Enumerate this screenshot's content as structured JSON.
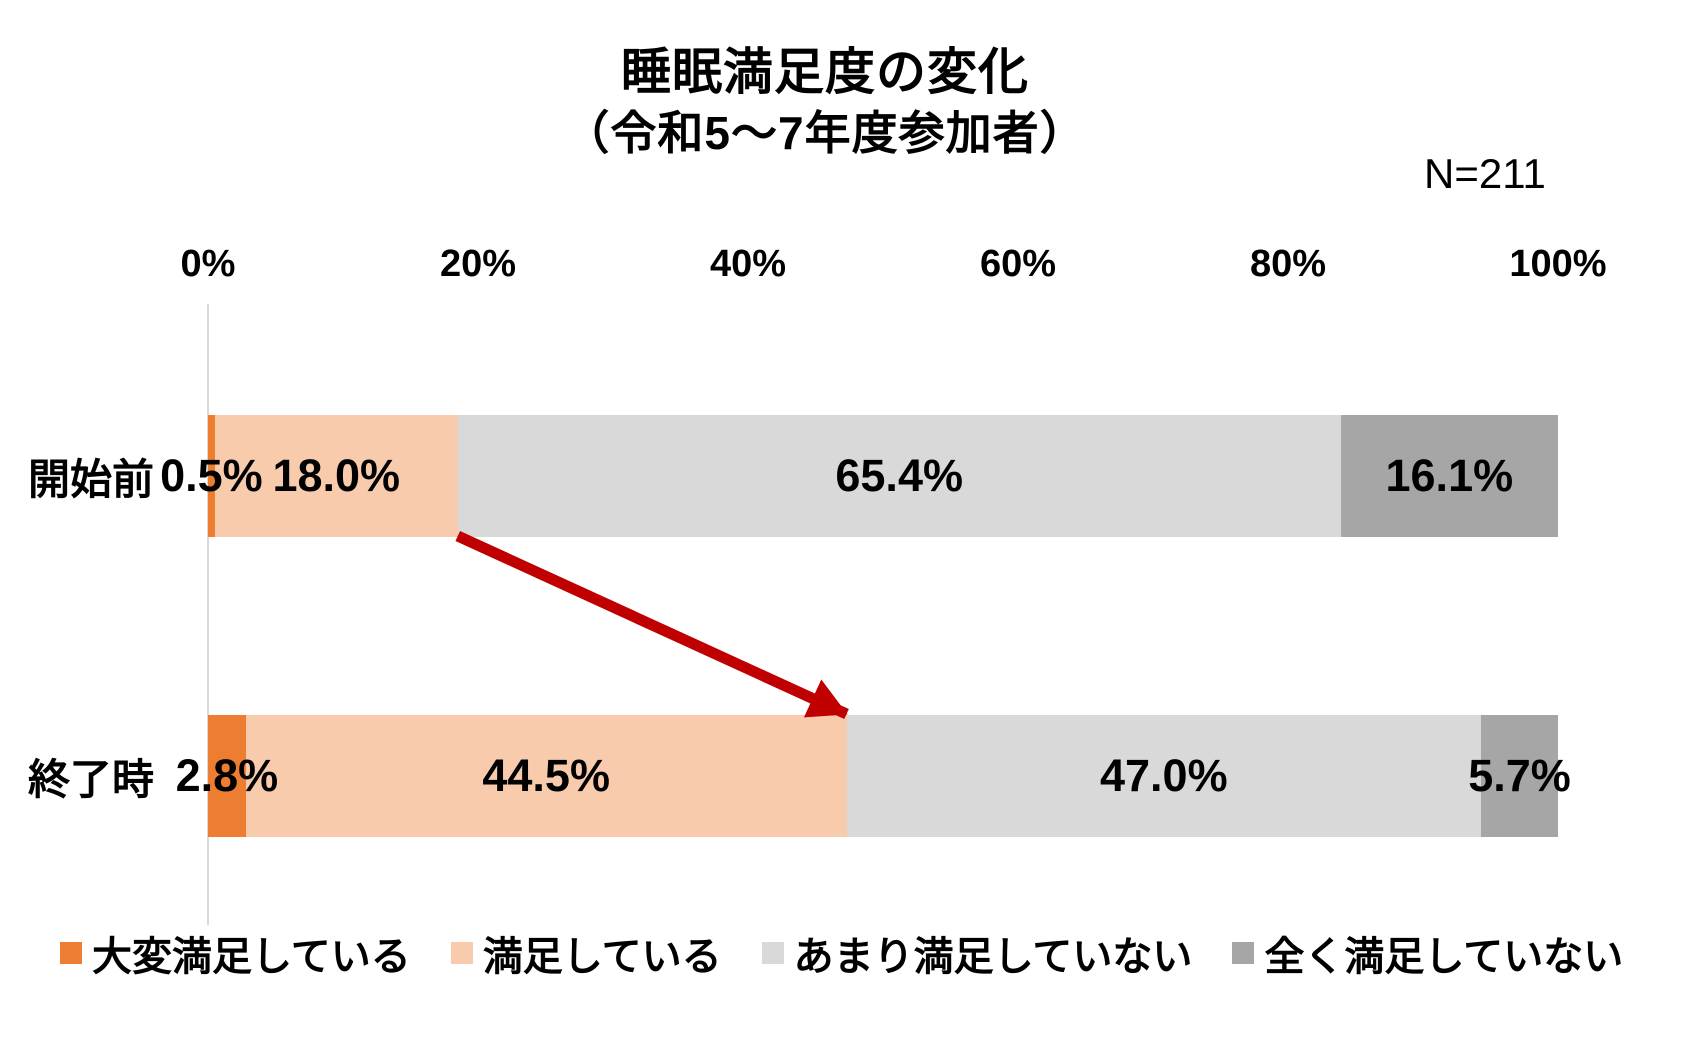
{
  "title": {
    "line1": "睡眠満足度の変化",
    "line2": "（令和5～7年度参加者）"
  },
  "sample_label": "N=211",
  "chart_data": {
    "type": "bar",
    "subtype": "horizontal-stacked",
    "unit": "percent",
    "title": "睡眠満足度の変化（令和5～7年度参加者）",
    "sample_size": 211,
    "categories": [
      "開始前",
      "終了時"
    ],
    "series": [
      {
        "name": "大変満足している",
        "color": "#ED7D31",
        "values": [
          0.5,
          2.8
        ],
        "labels": [
          "0.5%",
          "2.8%"
        ]
      },
      {
        "name": "満足している",
        "color": "#F8CBAD",
        "values": [
          18.0,
          44.5
        ],
        "labels": [
          "18.0%",
          "44.5%"
        ]
      },
      {
        "name": "あまり満足していない",
        "color": "#D9D9D9",
        "values": [
          65.4,
          47.0
        ],
        "labels": [
          "65.4%",
          "47.0%"
        ]
      },
      {
        "name": "全く満足していない",
        "color": "#A6A6A6",
        "values": [
          16.1,
          5.7
        ],
        "labels": [
          "16.1%",
          "5.7%"
        ]
      }
    ],
    "x_axis": {
      "min": 0,
      "max": 100,
      "ticks": [
        "0%",
        "20%",
        "40%",
        "60%",
        "80%",
        "100%"
      ],
      "position": "top",
      "axis_line_color": "#D9D9D9"
    },
    "grid": false,
    "legend_position": "bottom",
    "annotation_arrow": {
      "color": "#C00000",
      "from_category": "開始前",
      "from_cumulative_percent": 18.5,
      "to_category": "終了時",
      "to_cumulative_percent": 47.3
    }
  }
}
